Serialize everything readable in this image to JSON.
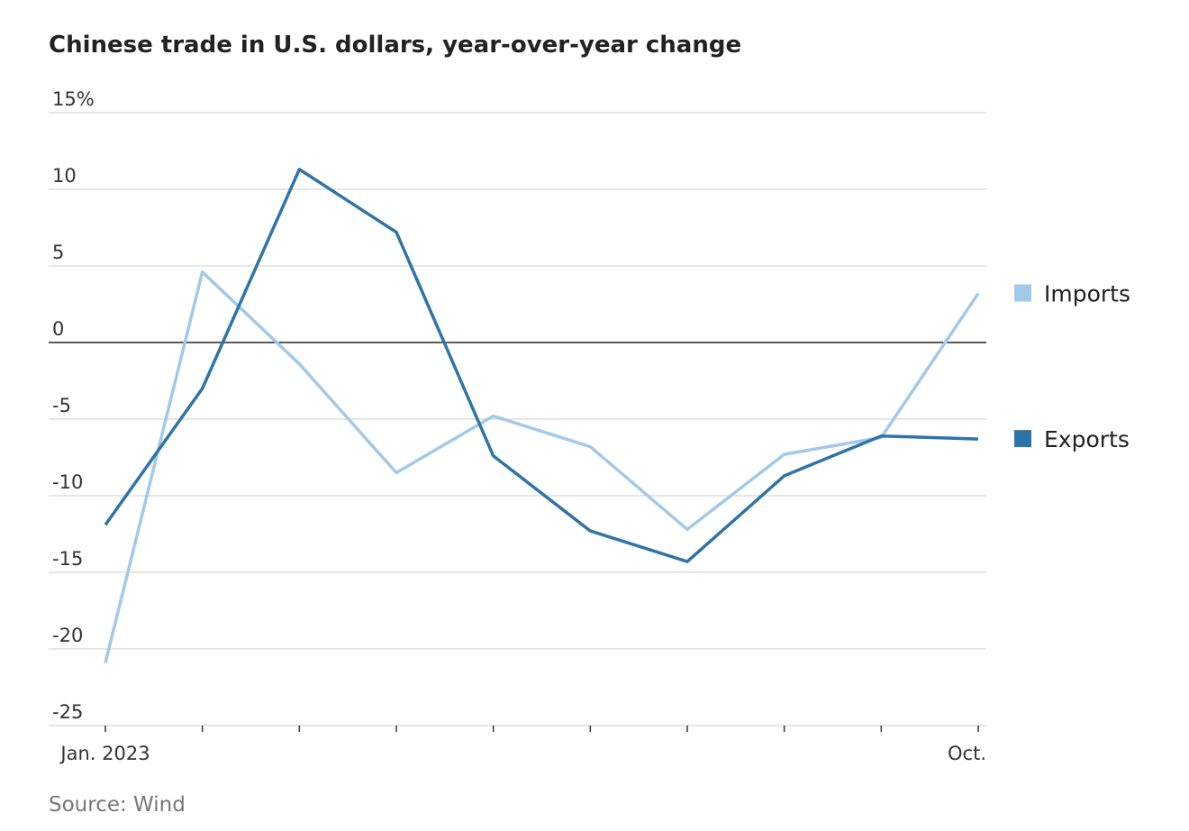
{
  "chart_data": {
    "type": "line",
    "title": "Chinese trade in U.S. dollars, year-over-year change",
    "source": "Source: Wind",
    "categories": [
      "Jan. 2023",
      null,
      null,
      null,
      null,
      null,
      null,
      null,
      null,
      "Oct."
    ],
    "series": [
      {
        "name": "Imports",
        "color": "#a3c9e8",
        "values": [
          -20.9,
          4.6,
          -1.4,
          -8.5,
          -4.8,
          -6.8,
          -12.2,
          -7.3,
          -6.2,
          3.2
        ]
      },
      {
        "name": "Exports",
        "color": "#2f74a8",
        "values": [
          -11.9,
          -3.0,
          11.3,
          7.2,
          -7.4,
          -12.3,
          -14.3,
          -8.7,
          -6.1,
          -6.3
        ]
      }
    ],
    "ylim": [
      -25,
      15
    ],
    "yticks": [
      -25,
      -20,
      -15,
      -10,
      -5,
      0,
      5,
      10,
      {
        "value": 15,
        "label": "15%"
      }
    ],
    "grid": true,
    "legend": "right"
  }
}
